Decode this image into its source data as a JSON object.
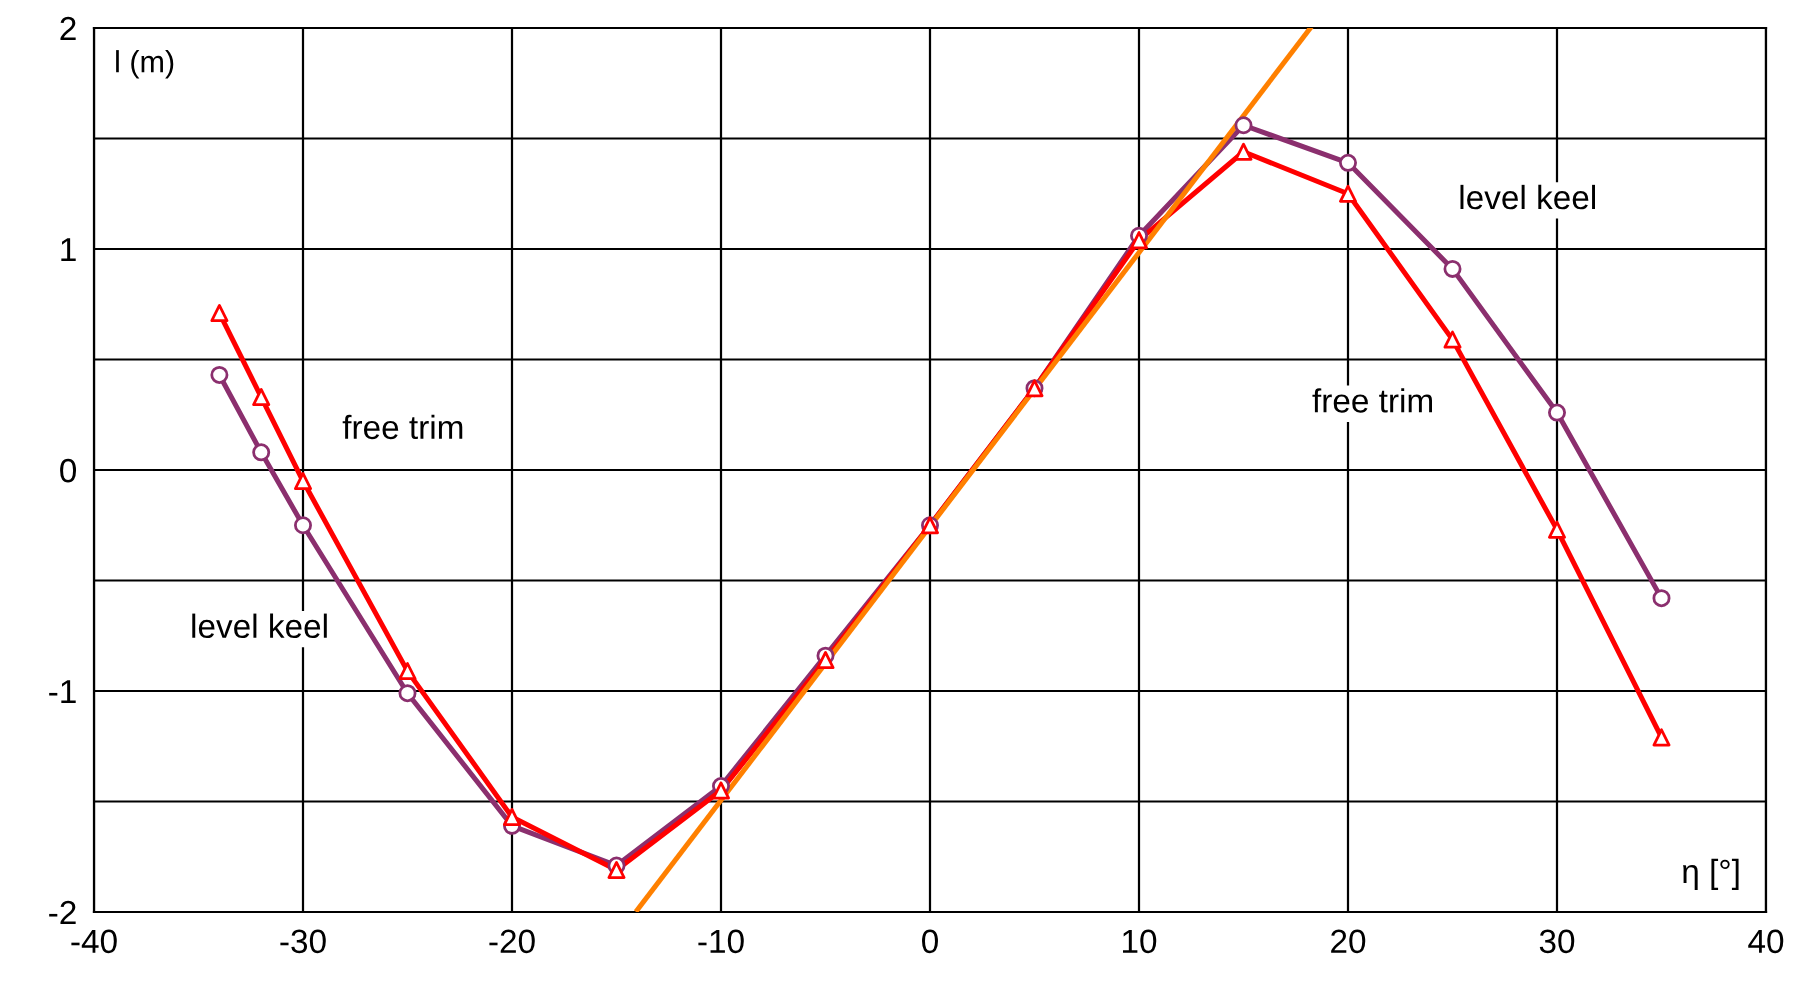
{
  "chart_data": {
    "type": "line",
    "xlabel": "η [°]",
    "ylabel": "l (m)",
    "xlim": [
      -40,
      40
    ],
    "xticks": [
      -40,
      -30,
      -20,
      -10,
      0,
      10,
      20,
      30,
      40
    ],
    "ylim": [
      -2,
      2
    ],
    "yticks": [
      -2,
      {
        "value": -1.5,
        "label": null
      },
      -1,
      {
        "value": -0.5,
        "label": null
      },
      0,
      {
        "value": 0.5,
        "label": null
      },
      1,
      {
        "value": 1.5,
        "label": null
      },
      2
    ],
    "grid": true,
    "line_style": "solid",
    "series": [
      {
        "color": "#8b2f6e",
        "marker": "circle",
        "x": [
          -34,
          -32,
          -30,
          -25,
          -20,
          -15,
          -10,
          -5,
          0,
          5,
          10,
          15,
          20,
          25,
          30,
          35
        ],
        "values": [
          0.43,
          0.08,
          -0.25,
          -1.01,
          -1.61,
          -1.79,
          -1.43,
          -0.84,
          -0.25,
          0.37,
          1.06,
          1.56,
          1.39,
          0.91,
          0.26,
          -0.58
        ]
      },
      {
        "color": "#ff0000",
        "marker": "triangle",
        "x": [
          -34,
          -32,
          -30,
          -25,
          -20,
          -15,
          -10,
          -5,
          0,
          5,
          10,
          15,
          20,
          25,
          30,
          35
        ],
        "values": [
          0.71,
          0.33,
          -0.05,
          -0.91,
          -1.57,
          -1.81,
          -1.45,
          -0.86,
          -0.25,
          0.37,
          1.04,
          1.44,
          1.25,
          0.59,
          -0.27,
          -1.21
        ]
      },
      {
        "color": "#ff8000",
        "marker": "none",
        "x": [
          -14,
          18.2
        ],
        "values": [
          -1.99,
          2.0
        ]
      }
    ],
    "annotations": [
      "free trim",
      "level keel",
      "level keel",
      "free trim"
    ]
  }
}
